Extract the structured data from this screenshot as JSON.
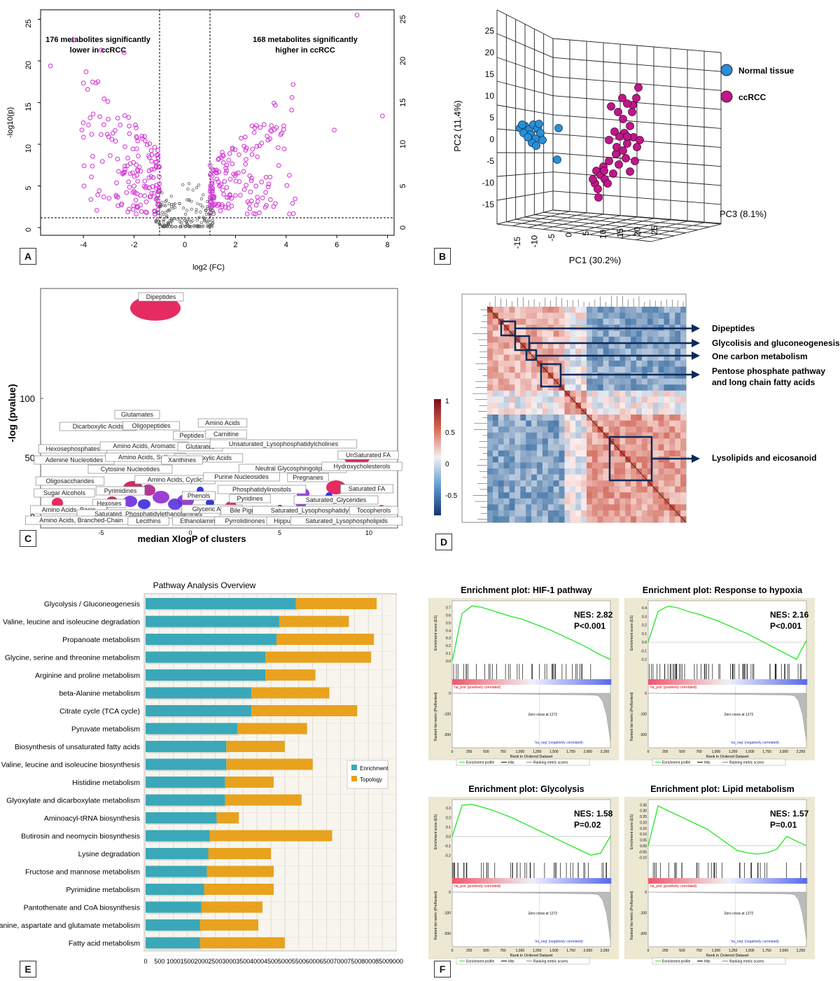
{
  "panels": {
    "A": "A",
    "B": "B",
    "C": "C",
    "D": "D",
    "E": "E",
    "F": "F"
  },
  "panelA": {
    "ylabel": "-log10(p)",
    "xlabel": "log2 (FC)",
    "annot_left": [
      "176 metabolites significantly",
      "lower in ccRCC"
    ],
    "annot_right": [
      "168 metabolites significantly",
      "higher in ccRCC"
    ],
    "yticks": [
      "0",
      "5",
      "10",
      "15",
      "20",
      "25"
    ],
    "xticks": [
      "-4",
      "-2",
      "0",
      "2",
      "4",
      "6",
      "8"
    ]
  },
  "panelB": {
    "pc1_label": "PC1 (30.2%)",
    "pc2_label": "PC2 (11.4%)",
    "pc3_label": "PC3 (8.1%)",
    "legend": [
      {
        "label": "Normal tissue",
        "color": "#2a8fd4"
      },
      {
        "label": "ccRCC",
        "color": "#c0168a"
      }
    ],
    "pc2_ticks": [
      "25",
      "20",
      "15",
      "10",
      "5",
      "0",
      "-5",
      "-10",
      "-15"
    ],
    "pc1_ticks": [
      "-15",
      "-10",
      "-5",
      "0",
      "5",
      "10",
      "15",
      "20",
      "25"
    ]
  },
  "panelC": {
    "ylabel": "-log (pvalue)",
    "xlabel": "median XlogP of clusters",
    "yticks": [
      "0",
      "50",
      "100"
    ],
    "xticks": [
      "-5",
      "0",
      "5",
      "10"
    ],
    "labels": [
      "Dipeptides",
      "Glutamates",
      "Dicarboxylic Acids",
      "Oligopeptides",
      "Amino Acids",
      "Peptides",
      "Carnitine",
      "Hexosephosphates",
      "Amino Acids, Aromatic",
      "Glutarates",
      "Unsaturated_Lysophosphatidylcholines",
      "Adenine Nucleotides",
      "Amino Acids, Sulfur",
      "Carboxylic Acids",
      "UnSaturated FA",
      "Cytosine Nucleotides",
      "Xanthines",
      "Neutral Glycosphingolipids",
      "Hydroxycholesterols",
      "Oligosaccharides",
      "Amino Acids, Cyclic",
      "Purine Nucleosides",
      "Pregnanes",
      "Pyrimidines",
      "Phosphatidylinositols",
      "Sugar Alcohols",
      "Phenols",
      "Saturated FA",
      "Hexoses",
      "Pyridines",
      "Saturated_Glycerides",
      "Amino Acids, Basic",
      "Saturated_Phosphatidylethanolamines",
      "Glyceric Acids",
      "Bile Pigments",
      "Saturated_Lysophosphatidylcholines",
      "Tocopherols",
      "Amino Acids, Branched-Chain",
      "Lecithins",
      "Ethanolamines",
      "Pyrrolidinones",
      "Hippurates",
      "Saturated_Lysophospholipids"
    ]
  },
  "panelD": {
    "scale_ticks": [
      "1",
      "0.5",
      "0",
      "-0.5"
    ],
    "labels": [
      "Dipeptides",
      "Glycolisis and gluconeogenesis",
      "One carbon metabolism",
      "Pentose phosphate pathway",
      "and long chain fatty acids",
      "Lysolipids and eicosanoid"
    ]
  },
  "chart_data": [
    {
      "type": "bar",
      "title": "Pathway Analysis Overview",
      "categories": [
        "Glycolysis / Gluconeogenesis",
        "Valine, leucine and isoleucine degradation",
        "Propanoate metabolism",
        "Glycine, serine and threonine metabolism",
        "Arginine and proline metabolism",
        "beta-Alanine metabolism",
        "Citrate cycle (TCA cycle)",
        "Pyruvate metabolism",
        "Biosynthesis of unsaturated fatty acids",
        "Valine, leucine and isoleucine biosynthesis",
        "Histidine metabolism",
        "Glyoxylate and dicarboxylate metabolism",
        "Aminoacyl-tRNA biosynthesis",
        "Butirosin and neomycin biosynthesis",
        "Lysine degradation",
        "Fructose and mannose metabolism",
        "Pyrimidine metabolism",
        "Pantothenate and CoA biosynthesis",
        "Alanine, aspartate and glutamate metabolism",
        "Fatty acid metabolism"
      ],
      "stacked": true,
      "series": [
        {
          "name": "Enrichment",
          "color": "#3aa8b8",
          "values": [
            5400,
            4800,
            4700,
            4300,
            4300,
            3800,
            3800,
            3300,
            2900,
            2900,
            2850,
            2850,
            2550,
            2300,
            2250,
            2200,
            2100,
            2000,
            1950,
            1950
          ]
        },
        {
          "name": "Topology",
          "color": "#e8a21e",
          "values": [
            2900,
            2500,
            3500,
            3800,
            1800,
            2800,
            3800,
            2500,
            2100,
            3100,
            1750,
            2750,
            800,
            4400,
            2250,
            2400,
            2500,
            2200,
            2100,
            3050
          ]
        }
      ],
      "xticks": [
        "0",
        "500",
        "1000",
        "1500",
        "2000",
        "2500",
        "3000",
        "3500",
        "4000",
        "4500",
        "5000",
        "5500",
        "6000",
        "6500",
        "7000",
        "7500",
        "8000",
        "8500",
        "9000"
      ],
      "xlim": [
        0,
        9000
      ],
      "legend": "right"
    }
  ],
  "panelF": {
    "plots": [
      {
        "title": "Enrichment plot: HIF-1 pathway",
        "nes": "NES: 2.82",
        "p": "P<0.001",
        "yticks": [
          "0.7",
          "0.6",
          "0.5",
          "0.4",
          "0.3",
          "0.2",
          "0.1",
          "0.0"
        ],
        "ylim": [
          0,
          0.75
        ],
        "es": [
          0.0,
          0.62,
          0.72,
          0.7,
          0.66,
          0.62,
          0.58,
          0.55,
          0.5,
          0.45,
          0.4,
          0.34,
          0.28,
          0.22,
          0.15,
          0.08,
          0.02
        ]
      },
      {
        "title": "Enrichment plot: Response to hypoxia",
        "nes": "NES: 2.16",
        "p": "P<0.001",
        "yticks": [
          "0.4",
          "0.3",
          "0.2",
          "0.1",
          "0.0",
          "-0.1",
          "-0.2"
        ],
        "ylim": [
          -0.22,
          0.45
        ],
        "es": [
          0.0,
          0.36,
          0.42,
          0.4,
          0.36,
          0.33,
          0.29,
          0.25,
          0.2,
          0.15,
          0.1,
          0.04,
          -0.02,
          -0.08,
          -0.14,
          -0.2,
          0.02
        ]
      },
      {
        "title": "Enrichment plot: Glycolysis",
        "nes": "NES: 1.58",
        "p": "P=0.02",
        "yticks": [
          "0.3",
          "0.2",
          "0.1",
          "0.0",
          "-0.1",
          "-0.2"
        ],
        "ylim": [
          -0.25,
          0.36
        ],
        "es": [
          0.0,
          0.33,
          0.34,
          0.31,
          0.28,
          0.24,
          0.2,
          0.15,
          0.1,
          0.05,
          0.0,
          -0.05,
          -0.1,
          -0.15,
          -0.2,
          -0.18,
          0.0
        ]
      },
      {
        "title": "Enrichment plot: Lipid metabolism",
        "nes": "NES: 1.57",
        "p": "P=0.01",
        "yticks": [
          "0.35",
          "0.30",
          "0.25",
          "0.20",
          "0.15",
          "0.10",
          "0.05",
          "0.00",
          "-0.05",
          "-0.10"
        ],
        "ylim": [
          -0.12,
          0.37
        ],
        "es": [
          0.0,
          0.34,
          0.3,
          0.26,
          0.22,
          0.18,
          0.14,
          0.08,
          0.02,
          -0.04,
          -0.06,
          -0.07,
          -0.06,
          -0.03,
          0.08,
          0.04,
          0.0
        ]
      }
    ],
    "rank_ylabel": "Ranked list metric (PreRanked)",
    "es_ylabel": "Enrichment score (ES)",
    "xlabel": "Rank in Ordered Dataset",
    "xticks": [
      "0",
      "250",
      "500",
      "750",
      "1,000",
      "1,250",
      "1,500",
      "1,750",
      "2,000",
      "2,250"
    ],
    "rank_yticks": [
      "0",
      "-100",
      "-200"
    ],
    "pos_label": "'na_pos' (positively correlated)",
    "neg_label": "'na_neg' (negatively correlated)",
    "zero_cross": "Zero cross at 1272",
    "legend": [
      "Enrichment profile",
      "Hits",
      "Ranking metric scores"
    ]
  }
}
